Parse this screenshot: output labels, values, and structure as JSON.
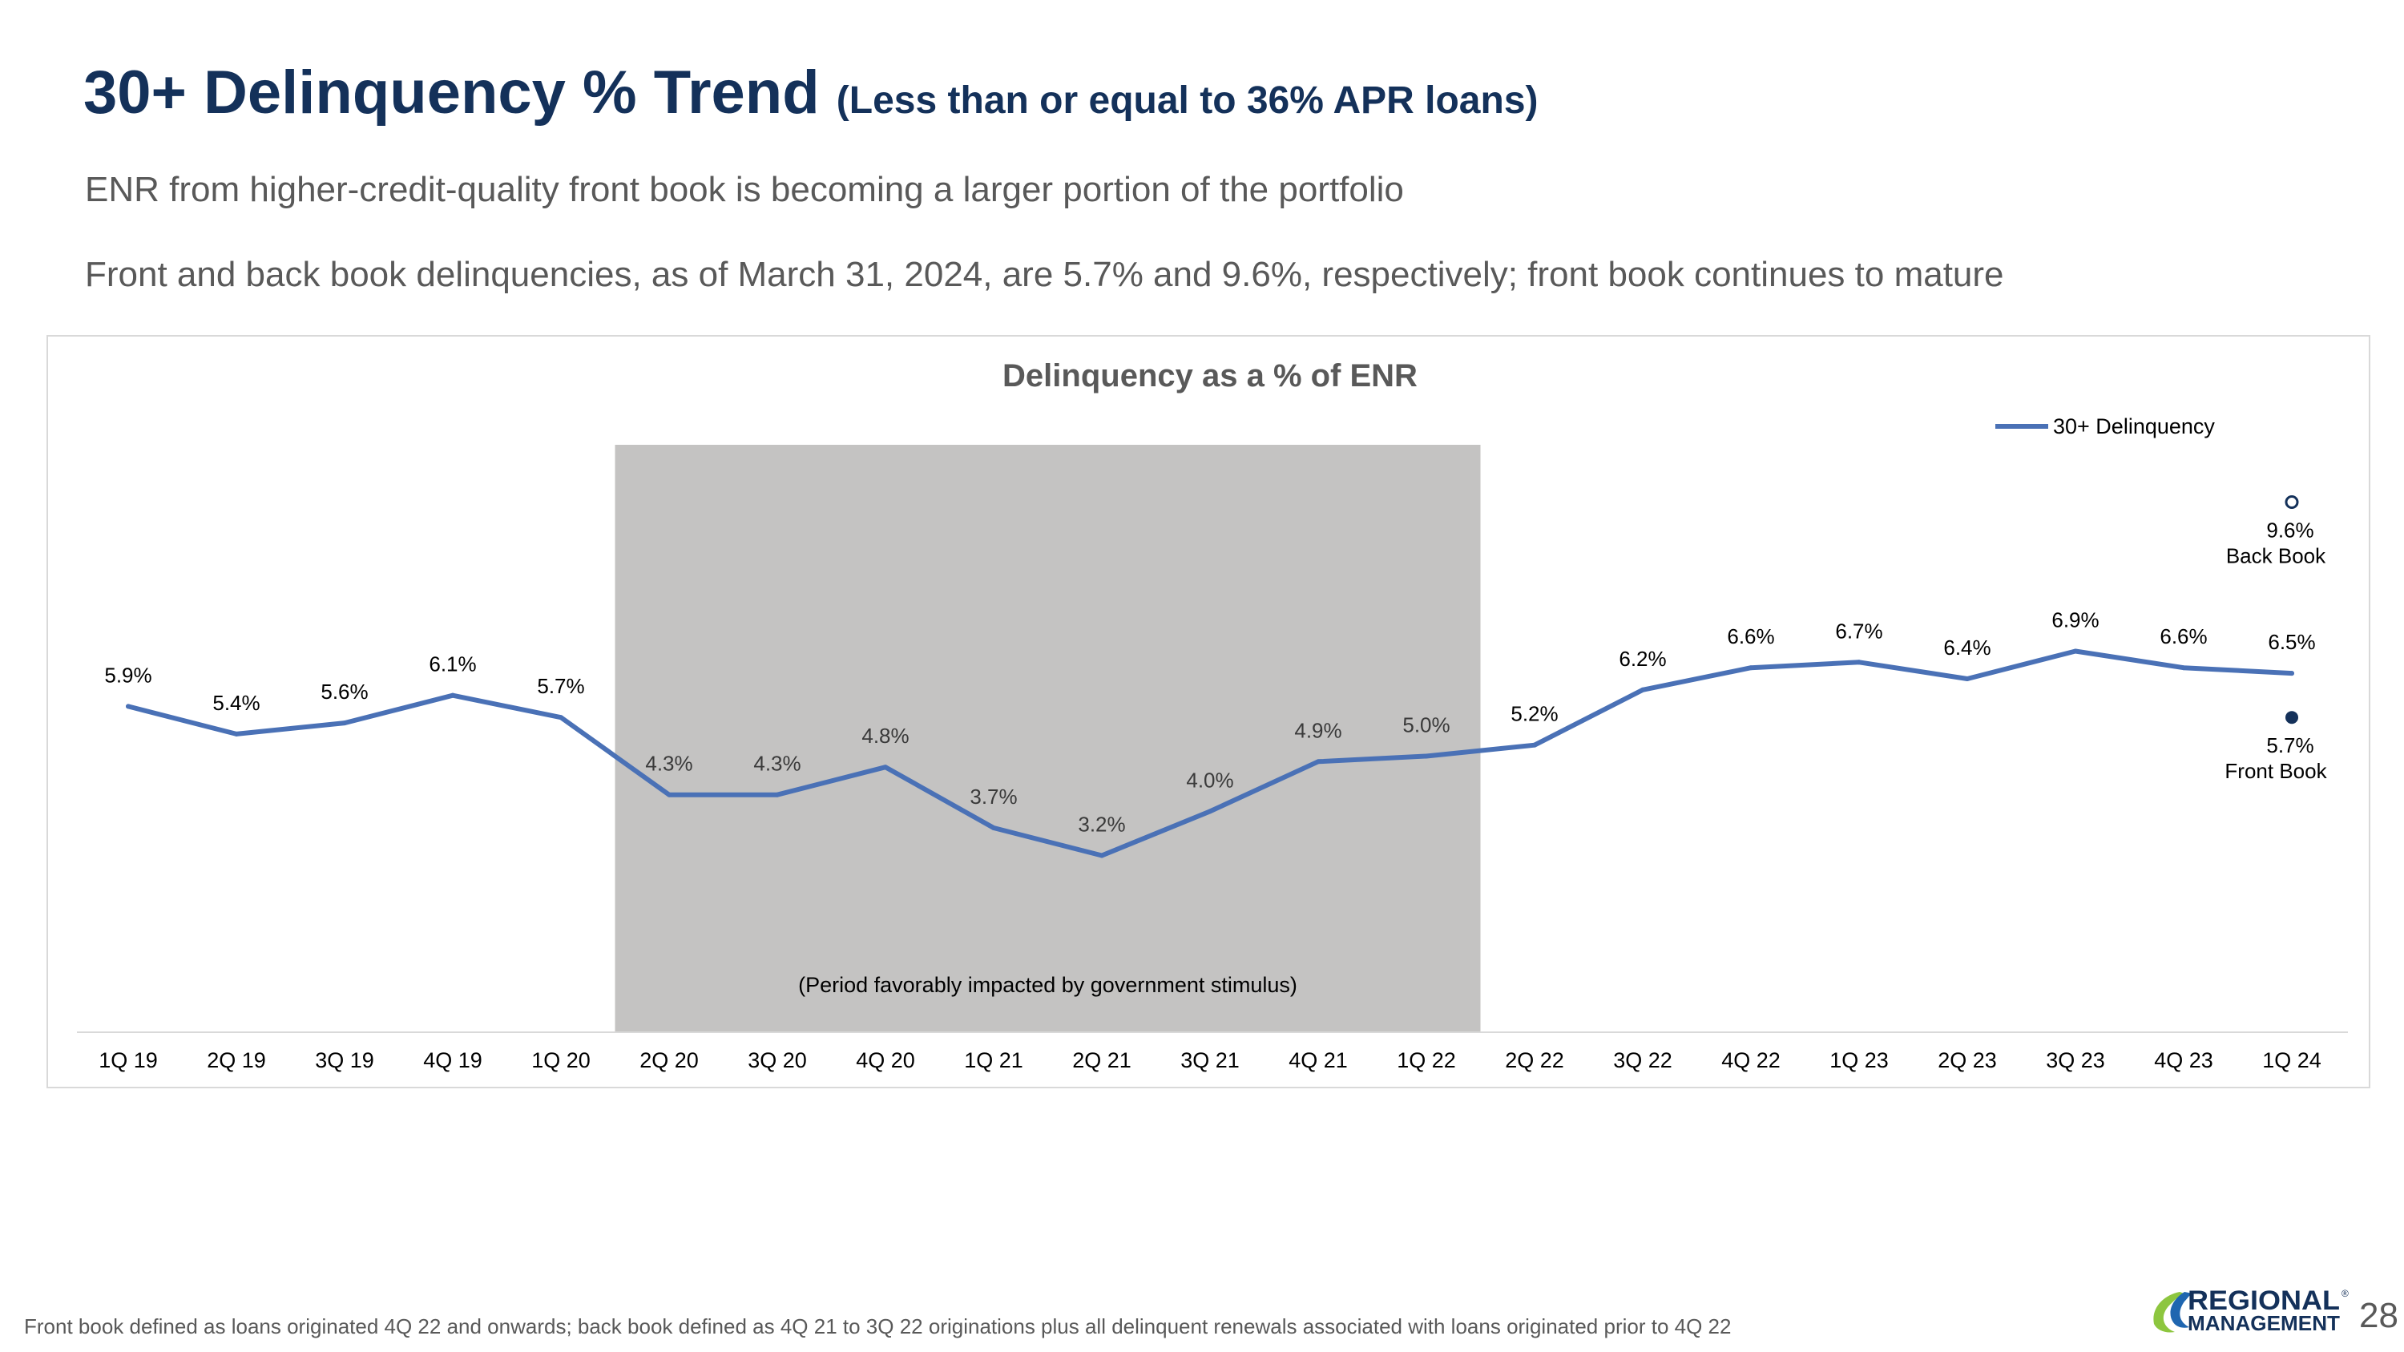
{
  "header": {
    "title_main": "30+ Delinquency % Trend",
    "title_sub": "(Less than or equal to 36% APR loans)",
    "subtitle_1": "ENR from higher-credit-quality front book is becoming a larger portion of the portfolio",
    "subtitle_2": "Front and back book delinquencies, as of March 31, 2024, are 5.7% and 9.6%, respectively; front book continues to mature"
  },
  "chart_data": {
    "type": "line",
    "title": "Delinquency as a % of ENR",
    "xlabel": "",
    "ylabel": "",
    "ylim": [
      0,
      11
    ],
    "grid": false,
    "legend": "top-right",
    "categories": [
      "1Q 19",
      "2Q 19",
      "3Q 19",
      "4Q 19",
      "1Q 20",
      "2Q 20",
      "3Q 20",
      "4Q 20",
      "1Q 21",
      "2Q 21",
      "3Q 21",
      "4Q 21",
      "1Q 22",
      "2Q 22",
      "3Q 22",
      "4Q 22",
      "1Q 23",
      "2Q 23",
      "3Q 23",
      "4Q 23",
      "1Q 24"
    ],
    "series": [
      {
        "name": "30+ Delinquency",
        "color": "#4a71b6",
        "values": [
          5.9,
          5.4,
          5.6,
          6.1,
          5.7,
          4.3,
          4.3,
          4.8,
          3.7,
          3.2,
          4.0,
          4.9,
          5.0,
          5.2,
          6.2,
          6.6,
          6.7,
          6.4,
          6.9,
          6.6,
          6.5
        ],
        "labels": [
          "5.9%",
          "5.4%",
          "5.6%",
          "6.1%",
          "5.7%",
          "4.3%",
          "4.3%",
          "4.8%",
          "3.7%",
          "3.2%",
          "4.0%",
          "4.9%",
          "5.0%",
          "5.2%",
          "6.2%",
          "6.6%",
          "6.7%",
          "6.4%",
          "6.9%",
          "6.6%",
          "6.5%"
        ]
      }
    ],
    "extra_points": [
      {
        "name": "Back Book",
        "category": "1Q 24",
        "value": 9.6,
        "label": "9.6%",
        "sublabel": "Back Book",
        "style": "hollow",
        "color": "#14315a"
      },
      {
        "name": "Front Book",
        "category": "1Q 24",
        "value": 5.7,
        "label": "5.7%",
        "sublabel": "Front Book",
        "style": "filled",
        "color": "#14315a"
      }
    ],
    "shaded_region": {
      "from": "2Q 20",
      "to": "1Q 22",
      "label": "(Period favorably impacted by government stimulus)",
      "color": "#c4c3c2"
    },
    "label_color": "#000000",
    "shaded_label_color": "#3a3a3a"
  },
  "footer": {
    "footnote": "Front book defined as loans originated 4Q 22 and onwards; back book defined as 4Q 21 to 3Q 22 originations plus all delinquent renewals associated with loans originated prior to 4Q 22",
    "page_number": "28",
    "logo_line1": "REGIONAL",
    "logo_line2": "MANAGEMENT",
    "logo_mark": "®"
  },
  "colors": {
    "title": "#14315a",
    "text_gray": "#595959",
    "line": "#4a71b6",
    "logo_green": "#8dc63f",
    "logo_blue": "#1f66b0",
    "axis": "#d9d9d9"
  }
}
